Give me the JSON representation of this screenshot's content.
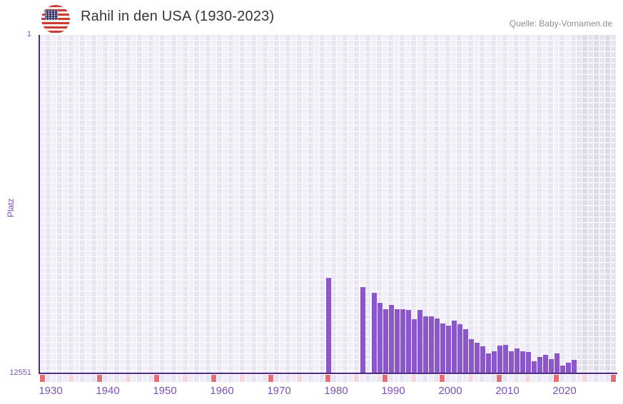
{
  "header": {
    "title": "Rahil in den USA (1930-2023)",
    "source": "Quelle: Baby-Vornamen.de"
  },
  "chart_data": {
    "type": "bar",
    "title": "Rahil in den USA (1930-2023)",
    "xlabel": "",
    "ylabel": "Platz",
    "y_axis_inverted": true,
    "ylim": [
      1,
      12551
    ],
    "y_tick_labels": [
      "1",
      "12551"
    ],
    "x_displayed_range": [
      1930,
      2030
    ],
    "data_year_range": [
      1930,
      2023
    ],
    "x_tick_labels": [
      "1930",
      "1940",
      "1950",
      "1960",
      "1970",
      "1980",
      "1990",
      "2000",
      "2010",
      "2020"
    ],
    "grid": true,
    "legend": false,
    "bars": [
      {
        "year": 1980,
        "rank": 9020
      },
      {
        "year": 1986,
        "rank": 9350
      },
      {
        "year": 1988,
        "rank": 9570
      },
      {
        "year": 1989,
        "rank": 9930
      },
      {
        "year": 1990,
        "rank": 10160
      },
      {
        "year": 1991,
        "rank": 10020
      },
      {
        "year": 1992,
        "rank": 10160
      },
      {
        "year": 1993,
        "rank": 10170
      },
      {
        "year": 1994,
        "rank": 10200
      },
      {
        "year": 1995,
        "rank": 10530
      },
      {
        "year": 1996,
        "rank": 10190
      },
      {
        "year": 1997,
        "rank": 10440
      },
      {
        "year": 1998,
        "rank": 10440
      },
      {
        "year": 1999,
        "rank": 10520
      },
      {
        "year": 2000,
        "rank": 10710
      },
      {
        "year": 2001,
        "rank": 10770
      },
      {
        "year": 2002,
        "rank": 10600
      },
      {
        "year": 2003,
        "rank": 10740
      },
      {
        "year": 2004,
        "rank": 10900
      },
      {
        "year": 2005,
        "rank": 11270
      },
      {
        "year": 2006,
        "rank": 11420
      },
      {
        "year": 2007,
        "rank": 11550
      },
      {
        "year": 2008,
        "rank": 11820
      },
      {
        "year": 2009,
        "rank": 11740
      },
      {
        "year": 2010,
        "rank": 11530
      },
      {
        "year": 2011,
        "rank": 11490
      },
      {
        "year": 2012,
        "rank": 11740
      },
      {
        "year": 2013,
        "rank": 11620
      },
      {
        "year": 2014,
        "rank": 11730
      },
      {
        "year": 2015,
        "rank": 11770
      },
      {
        "year": 2016,
        "rank": 12100
      },
      {
        "year": 2017,
        "rank": 11940
      },
      {
        "year": 2018,
        "rank": 11860
      },
      {
        "year": 2019,
        "rank": 12020
      },
      {
        "year": 2020,
        "rank": 11810
      },
      {
        "year": 2021,
        "rank": 12250
      },
      {
        "year": 2022,
        "rank": 12160
      },
      {
        "year": 2023,
        "rank": 12040
      }
    ]
  },
  "colors": {
    "bar": "#8c58c6",
    "axis": "#4f2c82",
    "tick_text": "#7a52ae",
    "grid_col_light": "#f2eff9",
    "grid_col_dark": "#e9e5f3",
    "future_col_light": "#e7e4f0",
    "future_col_dark": "#dfdcea",
    "strip_light_a": "#f1edf8",
    "strip_light_b": "#e9e4f2",
    "strip_decade": "#e16f7a",
    "strip_half_decade": "#f3d6de"
  }
}
